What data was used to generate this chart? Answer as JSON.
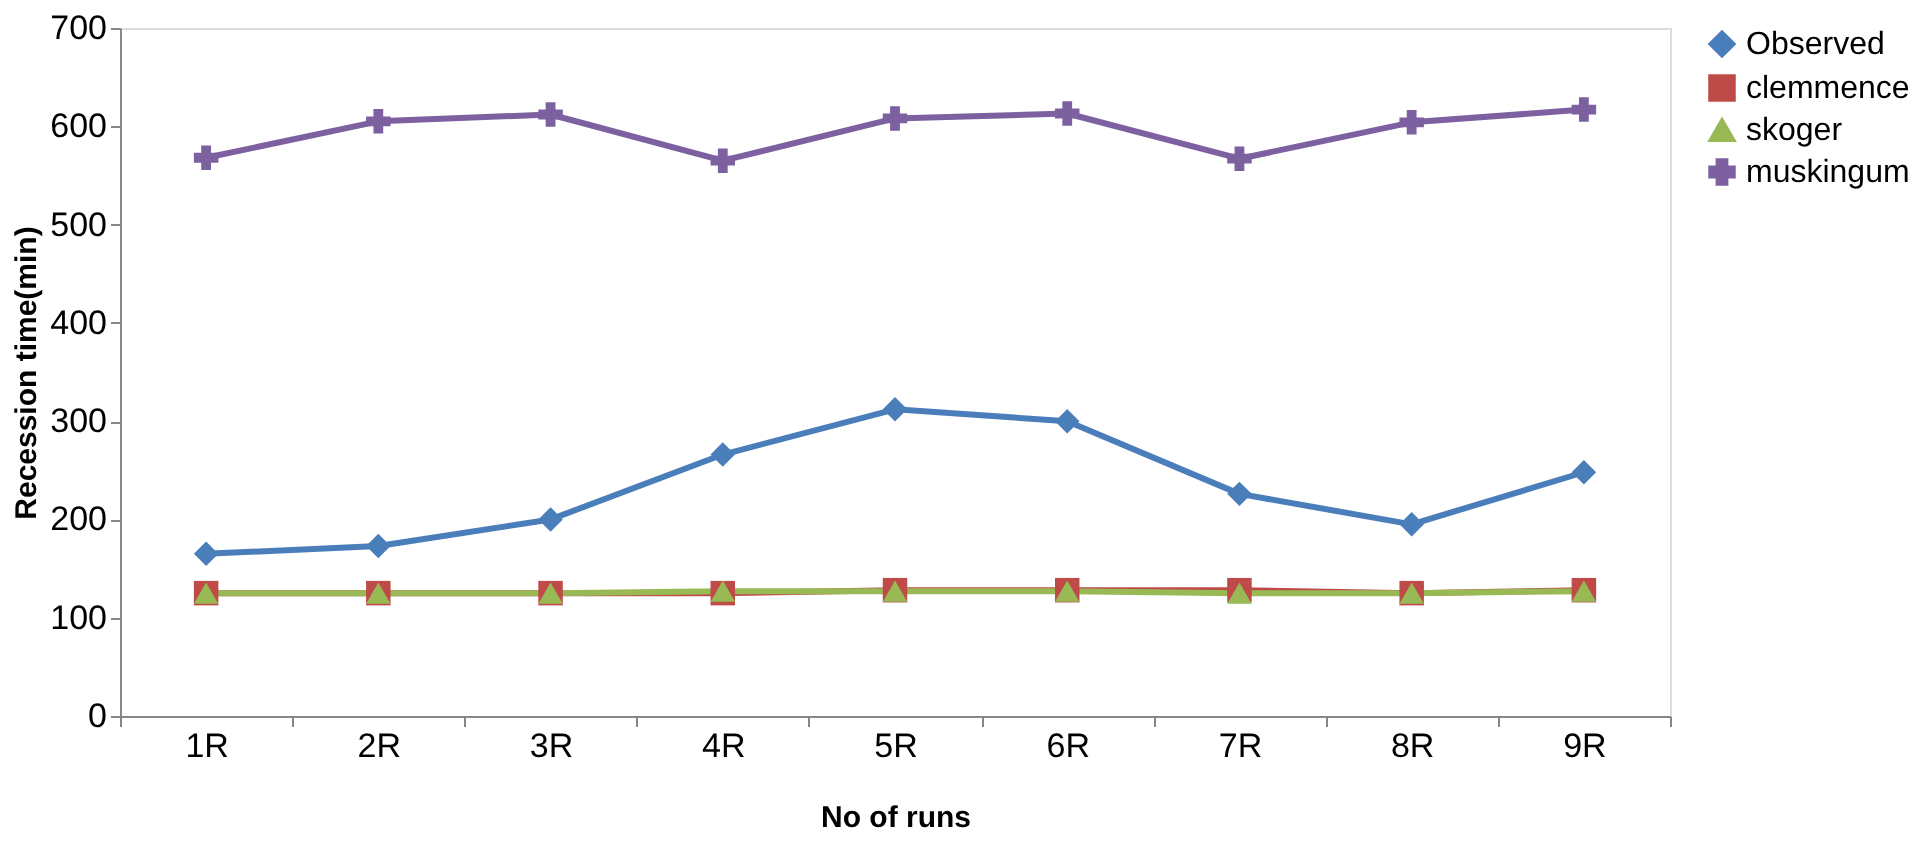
{
  "chart_data": {
    "type": "line",
    "xlabel": "No of runs",
    "ylabel": "Recession time(min)",
    "categories": [
      "1R",
      "2R",
      "3R",
      "4R",
      "5R",
      "6R",
      "7R",
      "8R",
      "9R"
    ],
    "series": [
      {
        "name": "Observed",
        "color": "#4a7ebb",
        "marker": "diamond",
        "values": [
          165,
          173,
          200,
          266,
          312,
          300,
          226,
          195,
          248
        ]
      },
      {
        "name": "clemmence",
        "color": "#be4b48",
        "marker": "square",
        "values": [
          125,
          125,
          125,
          125,
          128,
          128,
          128,
          125,
          128
        ]
      },
      {
        "name": "skoger",
        "color": "#98b954",
        "marker": "triangle",
        "values": [
          125,
          125,
          125,
          127,
          127,
          127,
          125,
          125,
          127
        ]
      },
      {
        "name": "muskingum",
        "color": "#7d60a0",
        "marker": "cross",
        "values": [
          568,
          605,
          612,
          565,
          608,
          613,
          567,
          604,
          617
        ]
      }
    ],
    "ylim": [
      0,
      700
    ],
    "yticks": [
      0,
      100,
      200,
      300,
      400,
      500,
      600,
      700
    ],
    "grid": false,
    "legend": "right",
    "line_style": "solid"
  }
}
